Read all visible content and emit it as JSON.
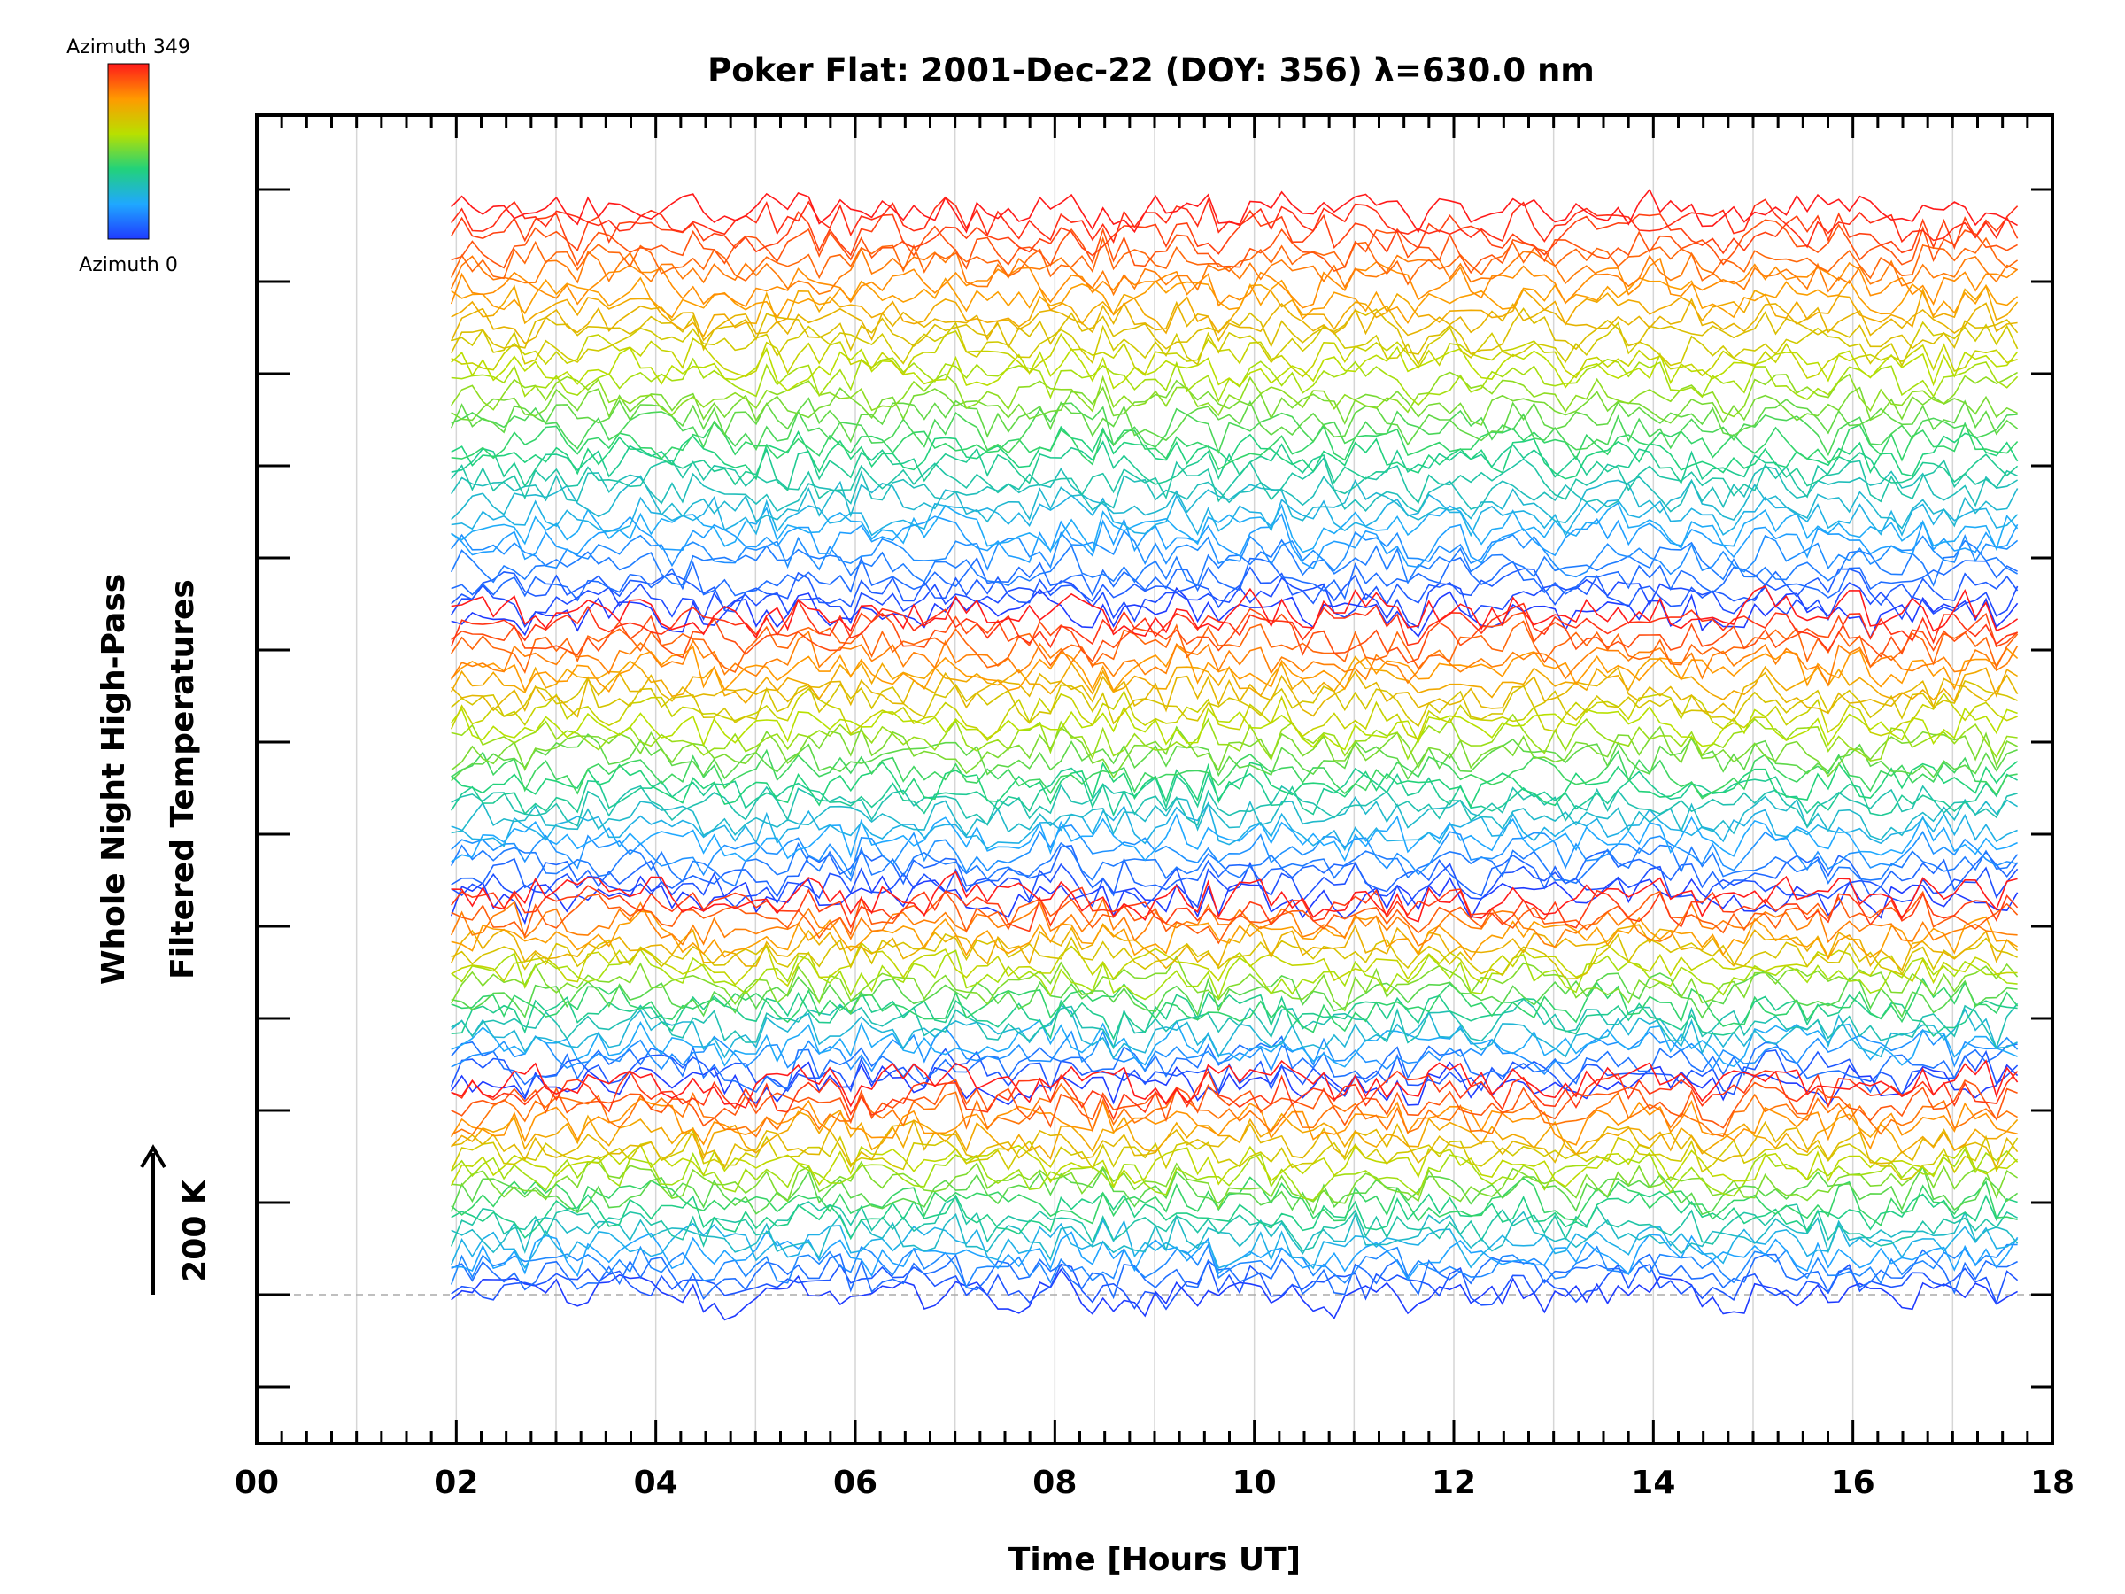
{
  "chart_data": {
    "type": "line",
    "title": "Poker Flat: 2001-Dec-22 (DOY: 356) λ=630.0 nm",
    "xlabel": "Time [Hours UT]",
    "ylabel_line1": "Whole Night High-Pass",
    "ylabel_line2": "Filtered Temperatures",
    "scale_label": "200 K",
    "xlim": [
      0,
      18
    ],
    "x_ticks": [
      "00",
      "02",
      "04",
      "06",
      "08",
      "10",
      "12",
      "14",
      "16",
      "18"
    ],
    "x_tick_values": [
      0,
      2,
      4,
      6,
      8,
      10,
      12,
      14,
      16,
      18
    ],
    "x_range_of_data": [
      1.95,
      17.65
    ],
    "grid": "vertical lines every hour",
    "colorbar": {
      "top_label": "Azimuth 349",
      "bottom_label": "Azimuth 0",
      "colormap": "rainbow (blue to red)"
    },
    "series_summary": "Many stacked, vertically offset time series of high-pass filtered temperature, one per azimuth, colored by azimuth from 0 (blue) to 349 (red); offsets repeat in 4 groups per zenith ring.",
    "baseline_reference": "dashed horizontal line at the lowest series baseline"
  }
}
